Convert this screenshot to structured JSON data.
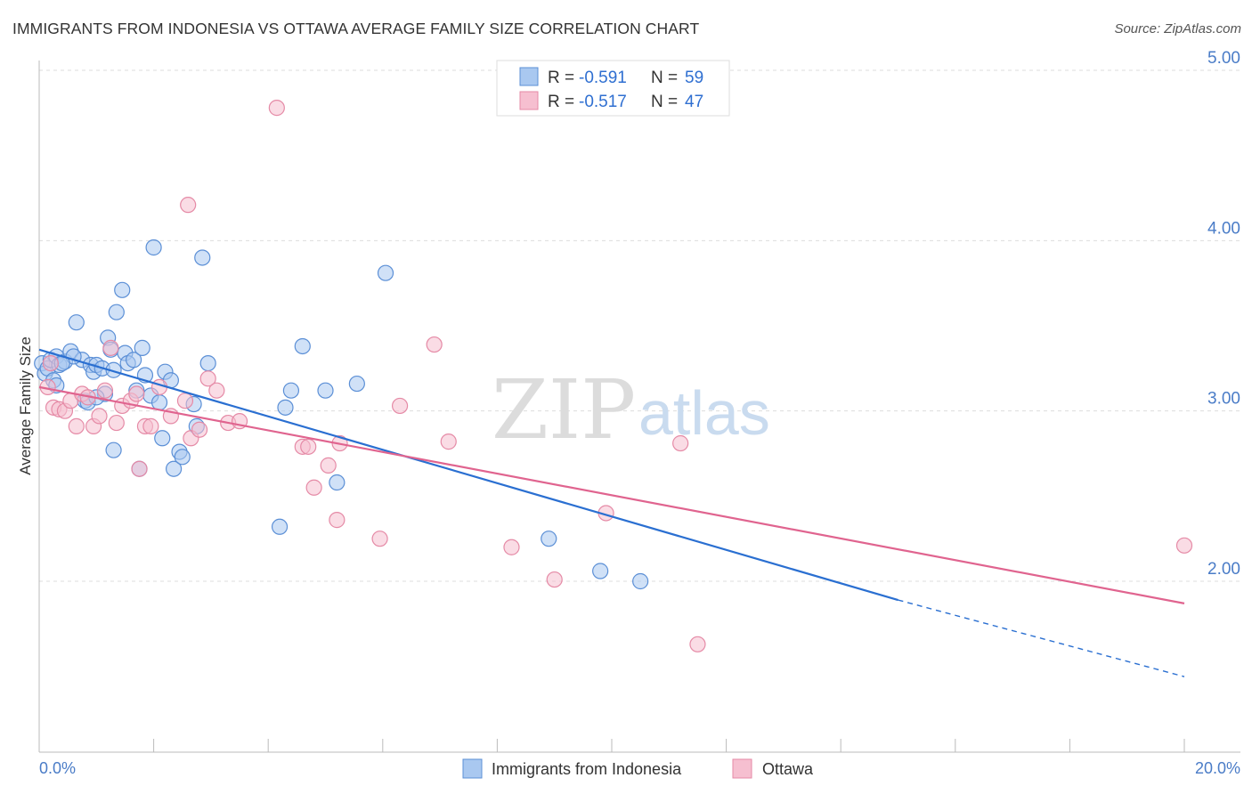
{
  "title": "IMMIGRANTS FROM INDONESIA VS OTTAWA AVERAGE FAMILY SIZE CORRELATION CHART",
  "source": "Source: ZipAtlas.com",
  "watermark": {
    "zip": "ZIP",
    "atlas": "atlas"
  },
  "legend": {
    "rows": [
      {
        "r_label": "R =",
        "r_value": "-0.591",
        "n_label": "N =",
        "n_value": "59"
      },
      {
        "r_label": "R =",
        "r_value": "-0.517",
        "n_label": "N =",
        "n_value": "47"
      }
    ]
  },
  "colors": {
    "blue_fill": "#a9c8f0",
    "blue_stroke": "#5b8fd6",
    "blue_line": "#2a6fd1",
    "pink_fill": "#f6bfd0",
    "pink_stroke": "#e58aa6",
    "pink_line": "#e0648f",
    "grid": "#dddddd",
    "axis_text": "#4a7cc7"
  },
  "chart_data": {
    "type": "scatter",
    "title": "IMMIGRANTS FROM INDONESIA VS OTTAWA AVERAGE FAMILY SIZE CORRELATION CHART",
    "xlabel": "",
    "ylabel": "Average Family Size",
    "xlim": [
      0,
      20
    ],
    "ylim": [
      1.1,
      5.15
    ],
    "x_tick_labels": [
      "0.0%",
      "20.0%"
    ],
    "y_ticks": [
      2.0,
      3.0,
      4.0,
      5.0
    ],
    "y_tick_labels": [
      "2.00",
      "3.00",
      "4.00",
      "5.00"
    ],
    "grid": true,
    "legend_position": "top-center",
    "series": [
      {
        "name": "Immigrants from Indonesia",
        "color": "#a9c8f0",
        "points": [
          [
            0.05,
            3.28
          ],
          [
            0.1,
            3.22
          ],
          [
            0.15,
            3.25
          ],
          [
            0.2,
            3.3
          ],
          [
            0.25,
            3.18
          ],
          [
            0.3,
            3.32
          ],
          [
            0.35,
            3.27
          ],
          [
            0.45,
            3.29
          ],
          [
            0.55,
            3.35
          ],
          [
            0.65,
            3.52
          ],
          [
            0.75,
            3.3
          ],
          [
            0.8,
            3.06
          ],
          [
            0.85,
            3.05
          ],
          [
            0.9,
            3.27
          ],
          [
            0.95,
            3.23
          ],
          [
            1.0,
            3.27
          ],
          [
            1.1,
            3.25
          ],
          [
            1.15,
            3.1
          ],
          [
            1.2,
            3.43
          ],
          [
            1.25,
            3.36
          ],
          [
            1.3,
            3.24
          ],
          [
            1.3,
            2.77
          ],
          [
            1.35,
            3.58
          ],
          [
            1.45,
            3.71
          ],
          [
            1.5,
            3.34
          ],
          [
            1.55,
            3.28
          ],
          [
            1.65,
            3.3
          ],
          [
            1.7,
            3.12
          ],
          [
            1.75,
            2.66
          ],
          [
            1.8,
            3.37
          ],
          [
            1.85,
            3.21
          ],
          [
            1.95,
            3.09
          ],
          [
            2.0,
            3.96
          ],
          [
            2.1,
            3.05
          ],
          [
            2.15,
            2.84
          ],
          [
            2.2,
            3.23
          ],
          [
            2.3,
            3.18
          ],
          [
            2.35,
            2.66
          ],
          [
            2.45,
            2.76
          ],
          [
            2.5,
            2.73
          ],
          [
            2.7,
            3.04
          ],
          [
            2.75,
            2.91
          ],
          [
            2.85,
            3.9
          ],
          [
            2.95,
            3.28
          ],
          [
            4.2,
            2.32
          ],
          [
            4.3,
            3.02
          ],
          [
            4.4,
            3.12
          ],
          [
            4.6,
            3.38
          ],
          [
            5.0,
            3.12
          ],
          [
            5.2,
            2.58
          ],
          [
            5.55,
            3.16
          ],
          [
            6.05,
            3.81
          ],
          [
            8.9,
            2.25
          ],
          [
            9.8,
            2.06
          ],
          [
            10.5,
            2.0
          ],
          [
            0.3,
            3.15
          ],
          [
            0.6,
            3.32
          ],
          [
            1.0,
            3.08
          ],
          [
            0.4,
            3.28
          ]
        ],
        "trendline": {
          "x": [
            0.0,
            15.0
          ],
          "y": [
            3.36,
            1.89
          ],
          "dashed_extension": {
            "x": [
              15.0,
              20.0
            ],
            "y": [
              1.89,
              1.44
            ]
          }
        }
      },
      {
        "name": "Ottawa",
        "color": "#f6bfd0",
        "points": [
          [
            0.15,
            3.14
          ],
          [
            0.25,
            3.02
          ],
          [
            0.35,
            3.01
          ],
          [
            0.45,
            3.0
          ],
          [
            0.55,
            3.06
          ],
          [
            0.65,
            2.91
          ],
          [
            0.75,
            3.1
          ],
          [
            0.85,
            3.08
          ],
          [
            0.95,
            2.91
          ],
          [
            1.05,
            2.97
          ],
          [
            1.15,
            3.12
          ],
          [
            1.25,
            3.37
          ],
          [
            1.35,
            2.93
          ],
          [
            1.45,
            3.03
          ],
          [
            1.6,
            3.06
          ],
          [
            1.7,
            3.1
          ],
          [
            1.75,
            2.66
          ],
          [
            1.85,
            2.91
          ],
          [
            1.95,
            2.91
          ],
          [
            2.1,
            3.14
          ],
          [
            2.3,
            2.97
          ],
          [
            2.55,
            3.06
          ],
          [
            2.6,
            4.21
          ],
          [
            2.65,
            2.84
          ],
          [
            2.8,
            2.89
          ],
          [
            2.95,
            3.19
          ],
          [
            3.1,
            3.12
          ],
          [
            3.3,
            2.93
          ],
          [
            3.5,
            2.94
          ],
          [
            4.15,
            4.78
          ],
          [
            4.6,
            2.79
          ],
          [
            4.7,
            2.79
          ],
          [
            4.8,
            2.55
          ],
          [
            5.05,
            2.68
          ],
          [
            5.2,
            2.36
          ],
          [
            5.25,
            2.81
          ],
          [
            5.95,
            2.25
          ],
          [
            6.3,
            3.03
          ],
          [
            6.9,
            3.39
          ],
          [
            7.15,
            2.82
          ],
          [
            8.25,
            2.2
          ],
          [
            9.0,
            2.01
          ],
          [
            9.9,
            2.4
          ],
          [
            11.2,
            2.81
          ],
          [
            11.5,
            1.63
          ],
          [
            20.0,
            2.21
          ],
          [
            0.2,
            3.28
          ]
        ],
        "trendline": {
          "x": [
            0.0,
            20.0
          ],
          "y": [
            3.14,
            1.87
          ]
        }
      }
    ]
  }
}
